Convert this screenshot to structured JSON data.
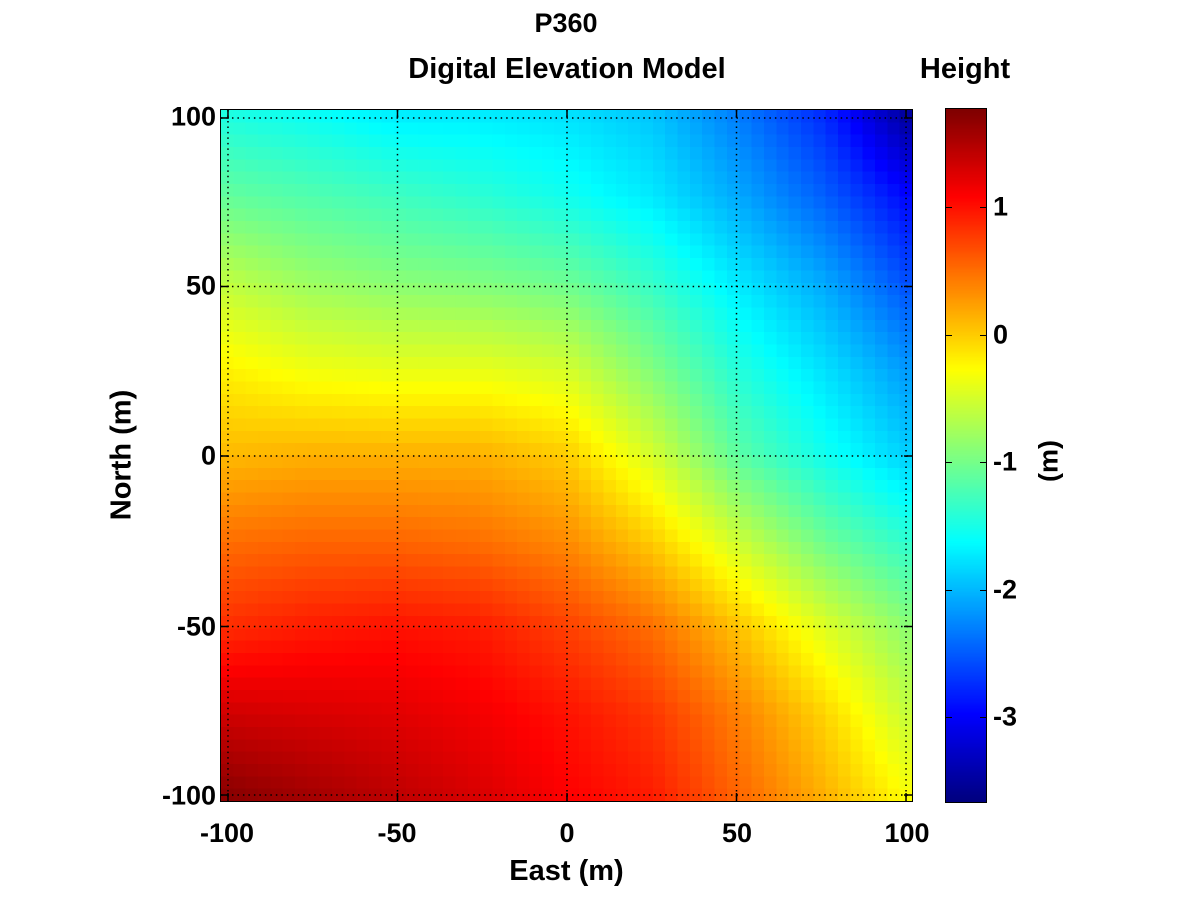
{
  "figure": {
    "title_line1": "P360",
    "title_line2": "Digital Elevation Model",
    "colorbar_title": "Height",
    "colorbar_unit": "(m)",
    "xlabel": "East (m)",
    "ylabel": "North (m)",
    "xticks": [
      "-100",
      "-50",
      "0",
      "50",
      "100"
    ],
    "yticks": [
      "100",
      "50",
      "0",
      "-50",
      "-100"
    ],
    "cbticks": [
      "1",
      "0",
      "-1",
      "-2",
      "-3"
    ]
  },
  "chart_data": {
    "type": "heatmap",
    "title": "P360 Digital Elevation Model",
    "xlabel": "East (m)",
    "ylabel": "North (m)",
    "colorbar_label": "Height (m)",
    "colormap": "jet",
    "xlim": [
      -100,
      100
    ],
    "ylim": [
      -100,
      100
    ],
    "clim": [
      -3.68,
      1.77
    ],
    "grid": true,
    "grid_style": "dotted",
    "x_ticks": [
      -100,
      -50,
      0,
      50,
      100
    ],
    "y_ticks": [
      -100,
      -50,
      0,
      50,
      100
    ],
    "colorbar_ticks": [
      -3,
      -2,
      -1,
      0,
      1
    ],
    "cells_per_axis": 56,
    "x": [
      -100,
      -75,
      -50,
      -25,
      0,
      25,
      50,
      75,
      100
    ],
    "y": [
      100,
      75,
      50,
      25,
      0,
      -25,
      -50,
      -75,
      -100
    ],
    "z": [
      [
        -1.5,
        -1.6,
        -1.75,
        -1.75,
        -1.8,
        -1.95,
        -2.35,
        -2.8,
        -3.6
      ],
      [
        -1.1,
        -1.2,
        -1.3,
        -1.4,
        -1.55,
        -1.75,
        -2.1,
        -2.5,
        -3.0
      ],
      [
        -0.6,
        -0.8,
        -0.9,
        -0.95,
        -1.05,
        -1.35,
        -1.75,
        -2.1,
        -2.6
      ],
      [
        -0.2,
        -0.35,
        -0.4,
        -0.4,
        -0.5,
        -0.95,
        -1.45,
        -1.8,
        -2.2
      ],
      [
        0.1,
        0.15,
        0.15,
        0.15,
        0.0,
        -0.5,
        -1.15,
        -1.55,
        -1.9
      ],
      [
        0.5,
        0.55,
        0.55,
        0.5,
        0.35,
        0.0,
        -0.55,
        -1.05,
        -1.4
      ],
      [
        0.85,
        0.95,
        1.0,
        0.95,
        0.75,
        0.5,
        0.05,
        -0.45,
        -0.9
      ],
      [
        1.35,
        1.3,
        1.25,
        1.15,
        1.0,
        0.8,
        0.4,
        -0.05,
        -0.6
      ],
      [
        1.75,
        1.6,
        1.45,
        1.3,
        1.1,
        0.95,
        0.55,
        0.15,
        -0.3
      ]
    ]
  }
}
